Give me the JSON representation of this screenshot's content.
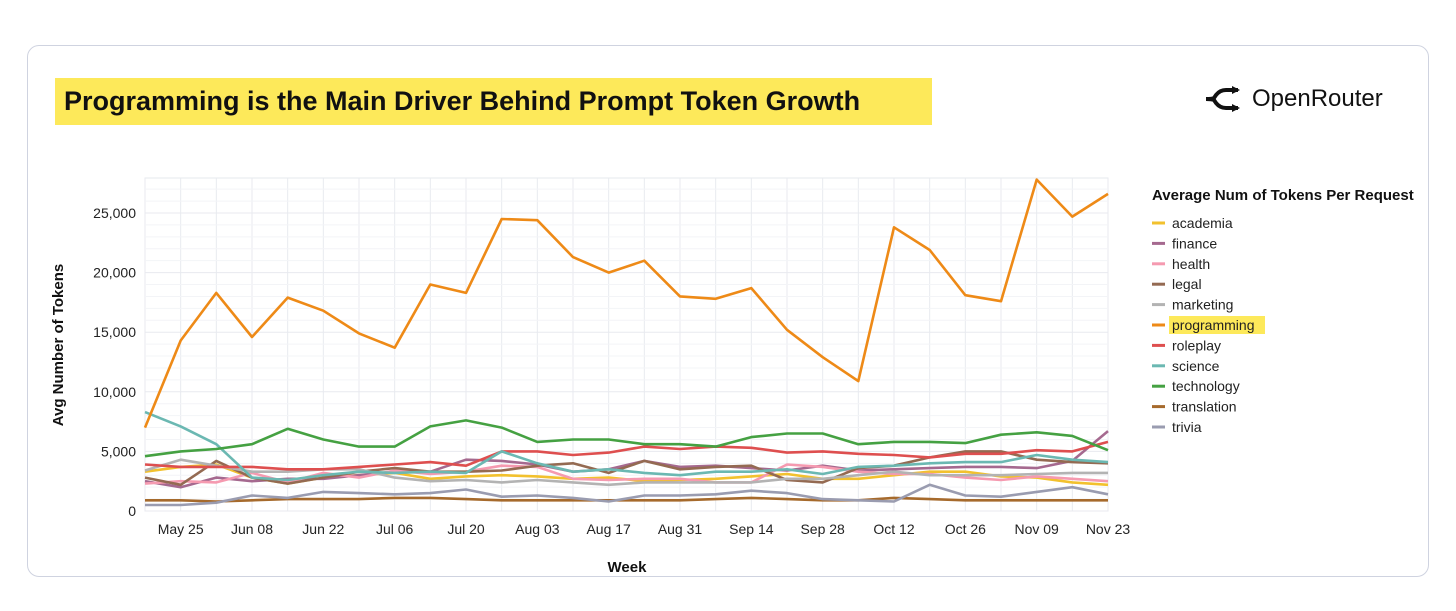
{
  "title": "Programming is the Main Driver Behind Prompt Token Growth",
  "logo_text": "OpenRouter",
  "chart_data": {
    "type": "line",
    "title": "Programming is the Main Driver Behind Prompt Token Growth",
    "xlabel": "Week",
    "ylabel": "Avg Number of Tokens",
    "legend_title": "Average Num of Tokens Per Request",
    "legend_position": "right",
    "highlighted_series": "programming",
    "highlight_color": "#fde95a",
    "grid": true,
    "ylim": [
      0,
      28000
    ],
    "yticks": [
      0,
      5000,
      10000,
      15000,
      20000,
      25000
    ],
    "ytick_labels": [
      "0",
      "5,000",
      "10,000",
      "15,000",
      "20,000",
      "25,000"
    ],
    "x_count": 28,
    "xtick_positions": [
      1,
      3,
      5,
      7,
      9,
      11,
      13,
      15,
      17,
      19,
      21,
      23,
      25,
      27
    ],
    "xtick_labels": [
      "May 25",
      "Jun 08",
      "Jun 22",
      "Jul 06",
      "Jul 20",
      "Aug 03",
      "Aug 17",
      "Aug 31",
      "Sep 14",
      "Sep 28",
      "Oct 12",
      "Oct 26",
      "Nov 09",
      "Nov 23"
    ],
    "series": [
      {
        "name": "academia",
        "color": "#f2c12e",
        "values": [
          3300,
          3700,
          3900,
          2800,
          2300,
          2800,
          3000,
          3200,
          2700,
          2900,
          3000,
          2900,
          2700,
          2800,
          2500,
          2600,
          2700,
          2900,
          3100,
          2700,
          2700,
          3000,
          3300,
          3300,
          2900,
          2800,
          2400,
          2200
        ]
      },
      {
        "name": "finance",
        "color": "#a5698f",
        "values": [
          2500,
          2000,
          2800,
          2500,
          2700,
          2700,
          3000,
          3300,
          3300,
          4300,
          4200,
          3900,
          3300,
          3500,
          4200,
          3700,
          3800,
          3600,
          3400,
          3800,
          3400,
          3500,
          3600,
          3700,
          3700,
          3600,
          4200,
          6700
        ]
      },
      {
        "name": "health",
        "color": "#f59ab0",
        "values": [
          2300,
          2500,
          2400,
          3200,
          2400,
          3200,
          2800,
          3400,
          3100,
          3300,
          3800,
          3700,
          2700,
          2600,
          2700,
          2700,
          2400,
          2400,
          3900,
          3700,
          3300,
          3100,
          3100,
          2800,
          2600,
          2900,
          2700,
          2500
        ]
      },
      {
        "name": "legal",
        "color": "#946a52",
        "values": [
          2800,
          2200,
          4200,
          2800,
          2300,
          2800,
          3300,
          3600,
          3300,
          3300,
          3400,
          3800,
          4000,
          3200,
          4200,
          3500,
          3700,
          3800,
          2600,
          2400,
          3600,
          3800,
          4500,
          5000,
          5000,
          4300,
          4100,
          4000
        ]
      },
      {
        "name": "marketing",
        "color": "#b3b3b3",
        "values": [
          3400,
          4300,
          3800,
          3300,
          3300,
          3500,
          3500,
          2800,
          2500,
          2600,
          2400,
          2600,
          2400,
          2200,
          2400,
          2400,
          2400,
          2400,
          2700,
          2700,
          3000,
          3300,
          3000,
          3000,
          3000,
          3100,
          3200,
          3200
        ]
      },
      {
        "name": "programming",
        "color": "#ee8a17",
        "values": [
          7000,
          14300,
          18300,
          14600,
          17900,
          16800,
          14900,
          13700,
          19000,
          18300,
          24500,
          24400,
          21300,
          20000,
          21000,
          18000,
          17800,
          18700,
          15200,
          12900,
          10900,
          23800,
          21900,
          18100,
          17600,
          27800,
          24700,
          26600
        ]
      },
      {
        "name": "roleplay",
        "color": "#de4f4f",
        "values": [
          3900,
          3700,
          3700,
          3700,
          3500,
          3500,
          3700,
          3900,
          4100,
          3800,
          5000,
          5000,
          4700,
          4900,
          5400,
          5200,
          5400,
          5300,
          4900,
          5000,
          4800,
          4700,
          4500,
          4800,
          4800,
          5100,
          5000,
          5800
        ]
      },
      {
        "name": "science",
        "color": "#6bb8b2",
        "values": [
          8300,
          7100,
          5600,
          2800,
          2600,
          3000,
          3300,
          3200,
          3300,
          3200,
          5000,
          4000,
          3300,
          3500,
          3200,
          3000,
          3300,
          3300,
          3500,
          3100,
          3700,
          3800,
          4000,
          4100,
          4100,
          4700,
          4300,
          4100
        ]
      },
      {
        "name": "technology",
        "color": "#45a142",
        "values": [
          4600,
          5000,
          5200,
          5600,
          6900,
          6000,
          5400,
          5400,
          7100,
          7600,
          7000,
          5800,
          6000,
          6000,
          5600,
          5600,
          5400,
          6200,
          6500,
          6500,
          5600,
          5800,
          5800,
          5700,
          6400,
          6600,
          6300,
          5100
        ]
      },
      {
        "name": "translation",
        "color": "#a66a2c",
        "values": [
          900,
          900,
          800,
          900,
          1000,
          1000,
          1000,
          1100,
          1100,
          1000,
          900,
          900,
          900,
          900,
          900,
          900,
          1000,
          1100,
          1000,
          900,
          900,
          1100,
          1000,
          900,
          900,
          900,
          900,
          900
        ]
      },
      {
        "name": "trivia",
        "color": "#9a9cb0",
        "values": [
          500,
          500,
          700,
          1300,
          1100,
          1600,
          1500,
          1400,
          1500,
          1800,
          1200,
          1300,
          1100,
          800,
          1300,
          1300,
          1400,
          1700,
          1500,
          1000,
          900,
          800,
          2200,
          1300,
          1200,
          1600,
          2000,
          1400
        ]
      }
    ]
  }
}
